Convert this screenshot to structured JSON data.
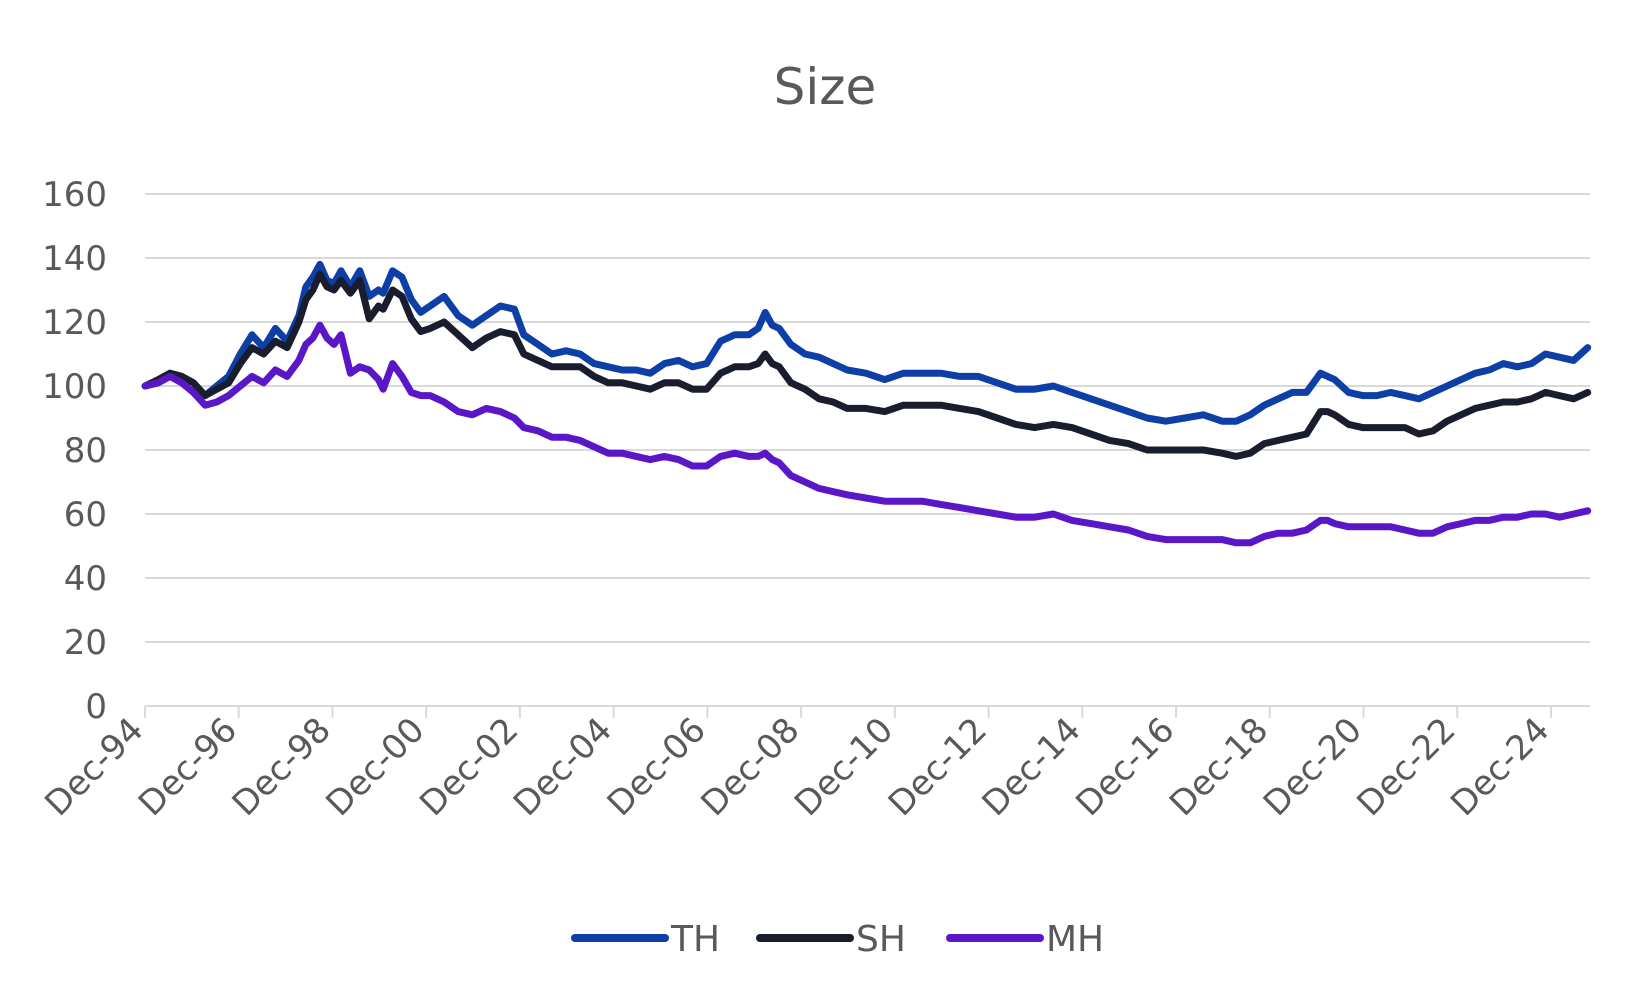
{
  "chart_data": {
    "type": "line",
    "title": "Size",
    "xlabel": "",
    "ylabel": "",
    "ylim": [
      0,
      160
    ],
    "yticks": [
      0,
      20,
      40,
      60,
      80,
      100,
      120,
      140,
      160
    ],
    "xlim": [
      1994.917,
      2025.75
    ],
    "xtick_labels": [
      "Dec-94",
      "Dec-96",
      "Dec-98",
      "Dec-00",
      "Dec-02",
      "Dec-04",
      "Dec-06",
      "Dec-08",
      "Dec-10",
      "Dec-12",
      "Dec-14",
      "Dec-16",
      "Dec-18",
      "Dec-20",
      "Dec-22",
      "Dec-24"
    ],
    "xtick_years": [
      1994.917,
      1996.917,
      1998.917,
      2000.917,
      2002.917,
      2004.917,
      2006.917,
      2008.917,
      2010.917,
      2012.917,
      2014.917,
      2016.917,
      2018.917,
      2020.917,
      2022.917,
      2024.917
    ],
    "grid": true,
    "legend_position": "bottom",
    "series": [
      {
        "name": "TH",
        "color": "#0d3fa6",
        "x": [
          1994.92,
          1995.2,
          1995.45,
          1995.7,
          1995.95,
          1996.2,
          1996.45,
          1996.7,
          1996.95,
          1997.2,
          1997.45,
          1997.7,
          1997.95,
          1998.2,
          1998.35,
          1998.5,
          1998.65,
          1998.8,
          1998.95,
          1999.1,
          1999.3,
          1999.5,
          1999.7,
          1999.9,
          2000.0,
          2000.2,
          2000.4,
          2000.6,
          2000.8,
          2001.0,
          2001.3,
          2001.6,
          2001.9,
          2002.2,
          2002.5,
          2002.8,
          2003.0,
          2003.3,
          2003.6,
          2003.9,
          2004.2,
          2004.5,
          2004.8,
          2005.1,
          2005.4,
          2005.7,
          2006.0,
          2006.3,
          2006.6,
          2006.9,
          2007.2,
          2007.5,
          2007.8,
          2008.0,
          2008.15,
          2008.3,
          2008.45,
          2008.7,
          2009.0,
          2009.3,
          2009.6,
          2009.9,
          2010.3,
          2010.7,
          2011.1,
          2011.5,
          2011.9,
          2012.3,
          2012.7,
          2013.1,
          2013.5,
          2013.9,
          2014.3,
          2014.7,
          2015.1,
          2015.5,
          2015.9,
          2016.3,
          2016.7,
          2017.1,
          2017.5,
          2017.9,
          2018.2,
          2018.5,
          2018.8,
          2019.1,
          2019.4,
          2019.7,
          2020.0,
          2020.15,
          2020.3,
          2020.6,
          2020.9,
          2021.2,
          2021.5,
          2021.8,
          2022.1,
          2022.4,
          2022.7,
          2023.0,
          2023.3,
          2023.6,
          2023.9,
          2024.2,
          2024.5,
          2024.8,
          2025.1,
          2025.4,
          2025.7
        ],
        "values": [
          100,
          101,
          104,
          103,
          101,
          97,
          100,
          103,
          110,
          116,
          112,
          118,
          114,
          122,
          131,
          134,
          138,
          133,
          132,
          136,
          131,
          136,
          128,
          130,
          129,
          136,
          134,
          127,
          123,
          125,
          128,
          122,
          119,
          122,
          125,
          124,
          116,
          113,
          110,
          111,
          110,
          107,
          106,
          105,
          105,
          104,
          107,
          108,
          106,
          107,
          114,
          116,
          116,
          118,
          123,
          119,
          118,
          113,
          110,
          109,
          107,
          105,
          104,
          102,
          104,
          104,
          104,
          103,
          103,
          101,
          99,
          99,
          100,
          98,
          96,
          94,
          92,
          90,
          89,
          90,
          91,
          89,
          89,
          91,
          94,
          96,
          98,
          98,
          104,
          103,
          102,
          98,
          97,
          97,
          98,
          97,
          96,
          98,
          100,
          102,
          104,
          105,
          107,
          106,
          107,
          110,
          109,
          108,
          112
        ]
      },
      {
        "name": "SH",
        "color": "#1a1d2e",
        "x": [
          1994.92,
          1995.2,
          1995.45,
          1995.7,
          1995.95,
          1996.2,
          1996.45,
          1996.7,
          1996.95,
          1997.2,
          1997.45,
          1997.7,
          1997.95,
          1998.2,
          1998.35,
          1998.5,
          1998.65,
          1998.8,
          1998.95,
          1999.1,
          1999.3,
          1999.5,
          1999.7,
          1999.9,
          2000.0,
          2000.2,
          2000.4,
          2000.6,
          2000.8,
          2001.0,
          2001.3,
          2001.6,
          2001.9,
          2002.2,
          2002.5,
          2002.8,
          2003.0,
          2003.3,
          2003.6,
          2003.9,
          2004.2,
          2004.5,
          2004.8,
          2005.1,
          2005.4,
          2005.7,
          2006.0,
          2006.3,
          2006.6,
          2006.9,
          2007.2,
          2007.5,
          2007.8,
          2008.0,
          2008.15,
          2008.3,
          2008.45,
          2008.7,
          2009.0,
          2009.3,
          2009.6,
          2009.9,
          2010.3,
          2010.7,
          2011.1,
          2011.5,
          2011.9,
          2012.3,
          2012.7,
          2013.1,
          2013.5,
          2013.9,
          2014.3,
          2014.7,
          2015.1,
          2015.5,
          2015.9,
          2016.3,
          2016.7,
          2017.1,
          2017.5,
          2017.9,
          2018.2,
          2018.5,
          2018.8,
          2019.1,
          2019.4,
          2019.7,
          2020.0,
          2020.15,
          2020.3,
          2020.6,
          2020.9,
          2021.2,
          2021.5,
          2021.8,
          2022.1,
          2022.4,
          2022.7,
          2023.0,
          2023.3,
          2023.6,
          2023.9,
          2024.2,
          2024.5,
          2024.8,
          2025.1,
          2025.4,
          2025.7
        ],
        "values": [
          100,
          102,
          104,
          103,
          101,
          97,
          99,
          101,
          107,
          112,
          110,
          114,
          112,
          120,
          127,
          130,
          135,
          131,
          130,
          133,
          129,
          133,
          121,
          125,
          124,
          130,
          128,
          121,
          117,
          118,
          120,
          116,
          112,
          115,
          117,
          116,
          110,
          108,
          106,
          106,
          106,
          103,
          101,
          101,
          100,
          99,
          101,
          101,
          99,
          99,
          104,
          106,
          106,
          107,
          110,
          107,
          106,
          101,
          99,
          96,
          95,
          93,
          93,
          92,
          94,
          94,
          94,
          93,
          92,
          90,
          88,
          87,
          88,
          87,
          85,
          83,
          82,
          80,
          80,
          80,
          80,
          79,
          78,
          79,
          82,
          83,
          84,
          85,
          92,
          92,
          91,
          88,
          87,
          87,
          87,
          87,
          85,
          86,
          89,
          91,
          93,
          94,
          95,
          95,
          96,
          98,
          97,
          96,
          98
        ]
      },
      {
        "name": "MH",
        "color": "#5a17c8",
        "x": [
          1994.92,
          1995.2,
          1995.45,
          1995.7,
          1995.95,
          1996.2,
          1996.45,
          1996.7,
          1996.95,
          1997.2,
          1997.45,
          1997.7,
          1997.95,
          1998.2,
          1998.35,
          1998.5,
          1998.65,
          1998.8,
          1998.95,
          1999.1,
          1999.3,
          1999.5,
          1999.7,
          1999.9,
          2000.0,
          2000.2,
          2000.4,
          2000.6,
          2000.8,
          2001.0,
          2001.3,
          2001.6,
          2001.9,
          2002.2,
          2002.5,
          2002.8,
          2003.0,
          2003.3,
          2003.6,
          2003.9,
          2004.2,
          2004.5,
          2004.8,
          2005.1,
          2005.4,
          2005.7,
          2006.0,
          2006.3,
          2006.6,
          2006.9,
          2007.2,
          2007.5,
          2007.8,
          2008.0,
          2008.15,
          2008.3,
          2008.45,
          2008.7,
          2009.0,
          2009.3,
          2009.6,
          2009.9,
          2010.3,
          2010.7,
          2011.1,
          2011.5,
          2011.9,
          2012.3,
          2012.7,
          2013.1,
          2013.5,
          2013.9,
          2014.3,
          2014.7,
          2015.1,
          2015.5,
          2015.9,
          2016.3,
          2016.7,
          2017.1,
          2017.5,
          2017.9,
          2018.2,
          2018.5,
          2018.8,
          2019.1,
          2019.4,
          2019.7,
          2020.0,
          2020.15,
          2020.3,
          2020.6,
          2020.9,
          2021.2,
          2021.5,
          2021.8,
          2022.1,
          2022.4,
          2022.7,
          2023.0,
          2023.3,
          2023.6,
          2023.9,
          2024.2,
          2024.5,
          2024.8,
          2025.1,
          2025.4,
          2025.7
        ],
        "values": [
          100,
          101,
          103,
          101,
          98,
          94,
          95,
          97,
          100,
          103,
          101,
          105,
          103,
          108,
          113,
          115,
          119,
          115,
          113,
          116,
          104,
          106,
          105,
          102,
          99,
          107,
          103,
          98,
          97,
          97,
          95,
          92,
          91,
          93,
          92,
          90,
          87,
          86,
          84,
          84,
          83,
          81,
          79,
          79,
          78,
          77,
          78,
          77,
          75,
          75,
          78,
          79,
          78,
          78,
          79,
          77,
          76,
          72,
          70,
          68,
          67,
          66,
          65,
          64,
          64,
          64,
          63,
          62,
          61,
          60,
          59,
          59,
          60,
          58,
          57,
          56,
          55,
          53,
          52,
          52,
          52,
          52,
          51,
          51,
          53,
          54,
          54,
          55,
          58,
          58,
          57,
          56,
          56,
          56,
          56,
          55,
          54,
          54,
          56,
          57,
          58,
          58,
          59,
          59,
          60,
          60,
          59,
          60,
          61
        ]
      }
    ]
  }
}
